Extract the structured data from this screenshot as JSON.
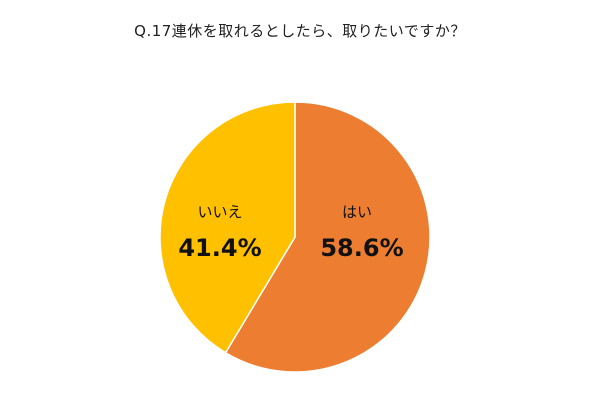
{
  "chart_data": {
    "type": "pie",
    "title": "Q.17連休を取れるとしたら、取りたいですか？",
    "slices": [
      {
        "label": "はい",
        "value": 58.6,
        "value_label": "58.6%",
        "color": "#ED7D31"
      },
      {
        "label": "いいえ",
        "value": 41.4,
        "value_label": "41.4%",
        "color": "#FFC000"
      }
    ],
    "start": "12 o'clock",
    "direction": "clockwise",
    "legend": "none",
    "slice_border_color": "#ffffff"
  }
}
